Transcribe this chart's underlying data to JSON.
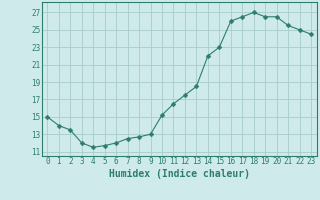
{
  "x": [
    0,
    1,
    2,
    3,
    4,
    5,
    6,
    7,
    8,
    9,
    10,
    11,
    12,
    13,
    14,
    15,
    16,
    17,
    18,
    19,
    20,
    21,
    22,
    23
  ],
  "y": [
    15.0,
    14.0,
    13.5,
    12.0,
    11.5,
    11.7,
    12.0,
    12.5,
    12.7,
    13.0,
    15.2,
    16.5,
    17.5,
    18.5,
    22.0,
    23.0,
    26.0,
    26.5,
    27.0,
    26.5,
    26.5,
    25.5,
    25.0,
    24.5
  ],
  "line_color": "#2d7d6d",
  "marker": "D",
  "marker_size": 2.5,
  "bg_color": "#ceeaea",
  "grid_color": "#a8cccc",
  "xlabel": "Humidex (Indice chaleur)",
  "ylabel": "",
  "xlim": [
    -0.5,
    23.5
  ],
  "ylim": [
    10.5,
    28.2
  ],
  "xticks": [
    0,
    1,
    2,
    3,
    4,
    5,
    6,
    7,
    8,
    9,
    10,
    11,
    12,
    13,
    14,
    15,
    16,
    17,
    18,
    19,
    20,
    21,
    22,
    23
  ],
  "yticks": [
    11,
    13,
    15,
    17,
    19,
    21,
    23,
    25,
    27
  ],
  "tick_label_fontsize": 5.5,
  "xlabel_fontsize": 7.0,
  "label_color": "#2d7d6d",
  "spine_color": "#2d7d6d"
}
